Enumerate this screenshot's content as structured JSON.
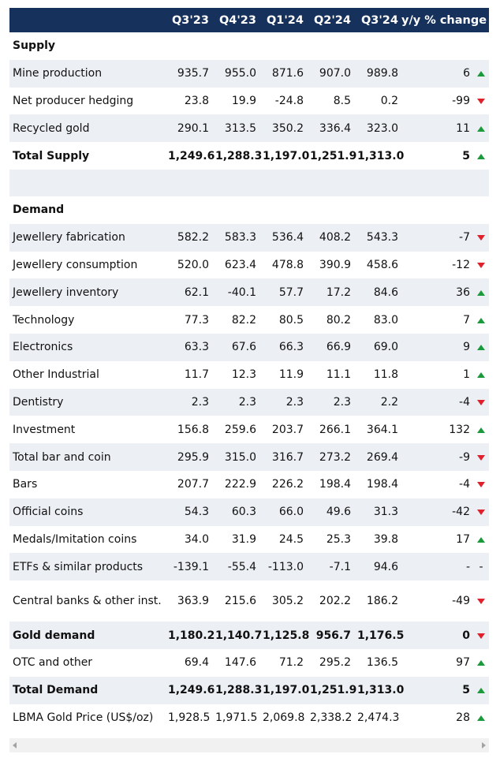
{
  "columns": [
    "Q3'23",
    "Q4'23",
    "Q1'24",
    "Q2'24",
    "Q3'24",
    "y/y % change"
  ],
  "colors": {
    "header_bg": "#16325c",
    "row_shade": "#eceff4",
    "up": "#1a9a3a",
    "down": "#e0202a"
  },
  "rows": [
    {
      "label": "Supply",
      "type": "section"
    },
    {
      "label": "Mine production",
      "values": [
        "935.7",
        "955.0",
        "871.6",
        "907.0",
        "989.8"
      ],
      "change": "6",
      "trend": "up"
    },
    {
      "label": "Net producer hedging",
      "values": [
        "23.8",
        "19.9",
        "-24.8",
        "8.5",
        "0.2"
      ],
      "change": "-99",
      "trend": "down"
    },
    {
      "label": "Recycled gold",
      "values": [
        "290.1",
        "313.5",
        "350.2",
        "336.4",
        "323.0"
      ],
      "change": "11",
      "trend": "up"
    },
    {
      "label": "Total Supply",
      "values": [
        "1,249.6",
        "1,288.3",
        "1,197.0",
        "1,251.9",
        "1,313.0"
      ],
      "change": "5",
      "trend": "up",
      "bold": true
    },
    {
      "label": "",
      "type": "spacer"
    },
    {
      "label": "Demand",
      "type": "section"
    },
    {
      "label": "Jewellery fabrication",
      "values": [
        "582.2",
        "583.3",
        "536.4",
        "408.2",
        "543.3"
      ],
      "change": "-7",
      "trend": "down"
    },
    {
      "label": "Jewellery consumption",
      "values": [
        "520.0",
        "623.4",
        "478.8",
        "390.9",
        "458.6"
      ],
      "change": "-12",
      "trend": "down"
    },
    {
      "label": "Jewellery inventory",
      "values": [
        "62.1",
        "-40.1",
        "57.7",
        "17.2",
        "84.6"
      ],
      "change": "36",
      "trend": "up"
    },
    {
      "label": "Technology",
      "values": [
        "77.3",
        "82.2",
        "80.5",
        "80.2",
        "83.0"
      ],
      "change": "7",
      "trend": "up"
    },
    {
      "label": "Electronics",
      "values": [
        "63.3",
        "67.6",
        "66.3",
        "66.9",
        "69.0"
      ],
      "change": "9",
      "trend": "up"
    },
    {
      "label": "Other Industrial",
      "values": [
        "11.7",
        "12.3",
        "11.9",
        "11.1",
        "11.8"
      ],
      "change": "1",
      "trend": "up"
    },
    {
      "label": "Dentistry",
      "values": [
        "2.3",
        "2.3",
        "2.3",
        "2.3",
        "2.2"
      ],
      "change": "-4",
      "trend": "down"
    },
    {
      "label": "Investment",
      "values": [
        "156.8",
        "259.6",
        "203.7",
        "266.1",
        "364.1"
      ],
      "change": "132",
      "trend": "up"
    },
    {
      "label": "Total bar and coin",
      "values": [
        "295.9",
        "315.0",
        "316.7",
        "273.2",
        "269.4"
      ],
      "change": "-9",
      "trend": "down"
    },
    {
      "label": "Bars",
      "values": [
        "207.7",
        "222.9",
        "226.2",
        "198.4",
        "198.4"
      ],
      "change": "-4",
      "trend": "down"
    },
    {
      "label": "Official coins",
      "values": [
        "54.3",
        "60.3",
        "66.0",
        "49.6",
        "31.3"
      ],
      "change": "-42",
      "trend": "down"
    },
    {
      "label": "Medals/Imitation coins",
      "values": [
        "34.0",
        "31.9",
        "24.5",
        "25.3",
        "39.8"
      ],
      "change": "17",
      "trend": "up"
    },
    {
      "label": "ETFs & similar products",
      "values": [
        "-139.1",
        "-55.4",
        "-113.0",
        "-7.1",
        "94.6"
      ],
      "change": "-",
      "trend": "none",
      "trend_text": "-"
    },
    {
      "label": "Central banks & other inst.",
      "values": [
        "363.9",
        "215.6",
        "305.2",
        "202.2",
        "186.2"
      ],
      "change": "-49",
      "trend": "down",
      "tall": true
    },
    {
      "label": "Gold demand",
      "values": [
        "1,180.2",
        "1,140.7",
        "1,125.8",
        "956.7",
        "1,176.5"
      ],
      "change": "0",
      "trend": "down",
      "bold": true
    },
    {
      "label": "OTC and other",
      "values": [
        "69.4",
        "147.6",
        "71.2",
        "295.2",
        "136.5"
      ],
      "change": "97",
      "trend": "up"
    },
    {
      "label": "Total Demand",
      "values": [
        "1,249.6",
        "1,288.3",
        "1,197.0",
        "1,251.9",
        "1,313.0"
      ],
      "change": "5",
      "trend": "up",
      "bold": true
    },
    {
      "label": "LBMA Gold Price (US$/oz)",
      "values": [
        "1,928.5",
        "1,971.5",
        "2,069.8",
        "2,338.2",
        "2,474.3"
      ],
      "change": "28",
      "trend": "up"
    }
  ],
  "scrollbar": {
    "left_icon": "scroll-left-arrow-icon",
    "right_icon": "scroll-right-arrow-icon"
  }
}
